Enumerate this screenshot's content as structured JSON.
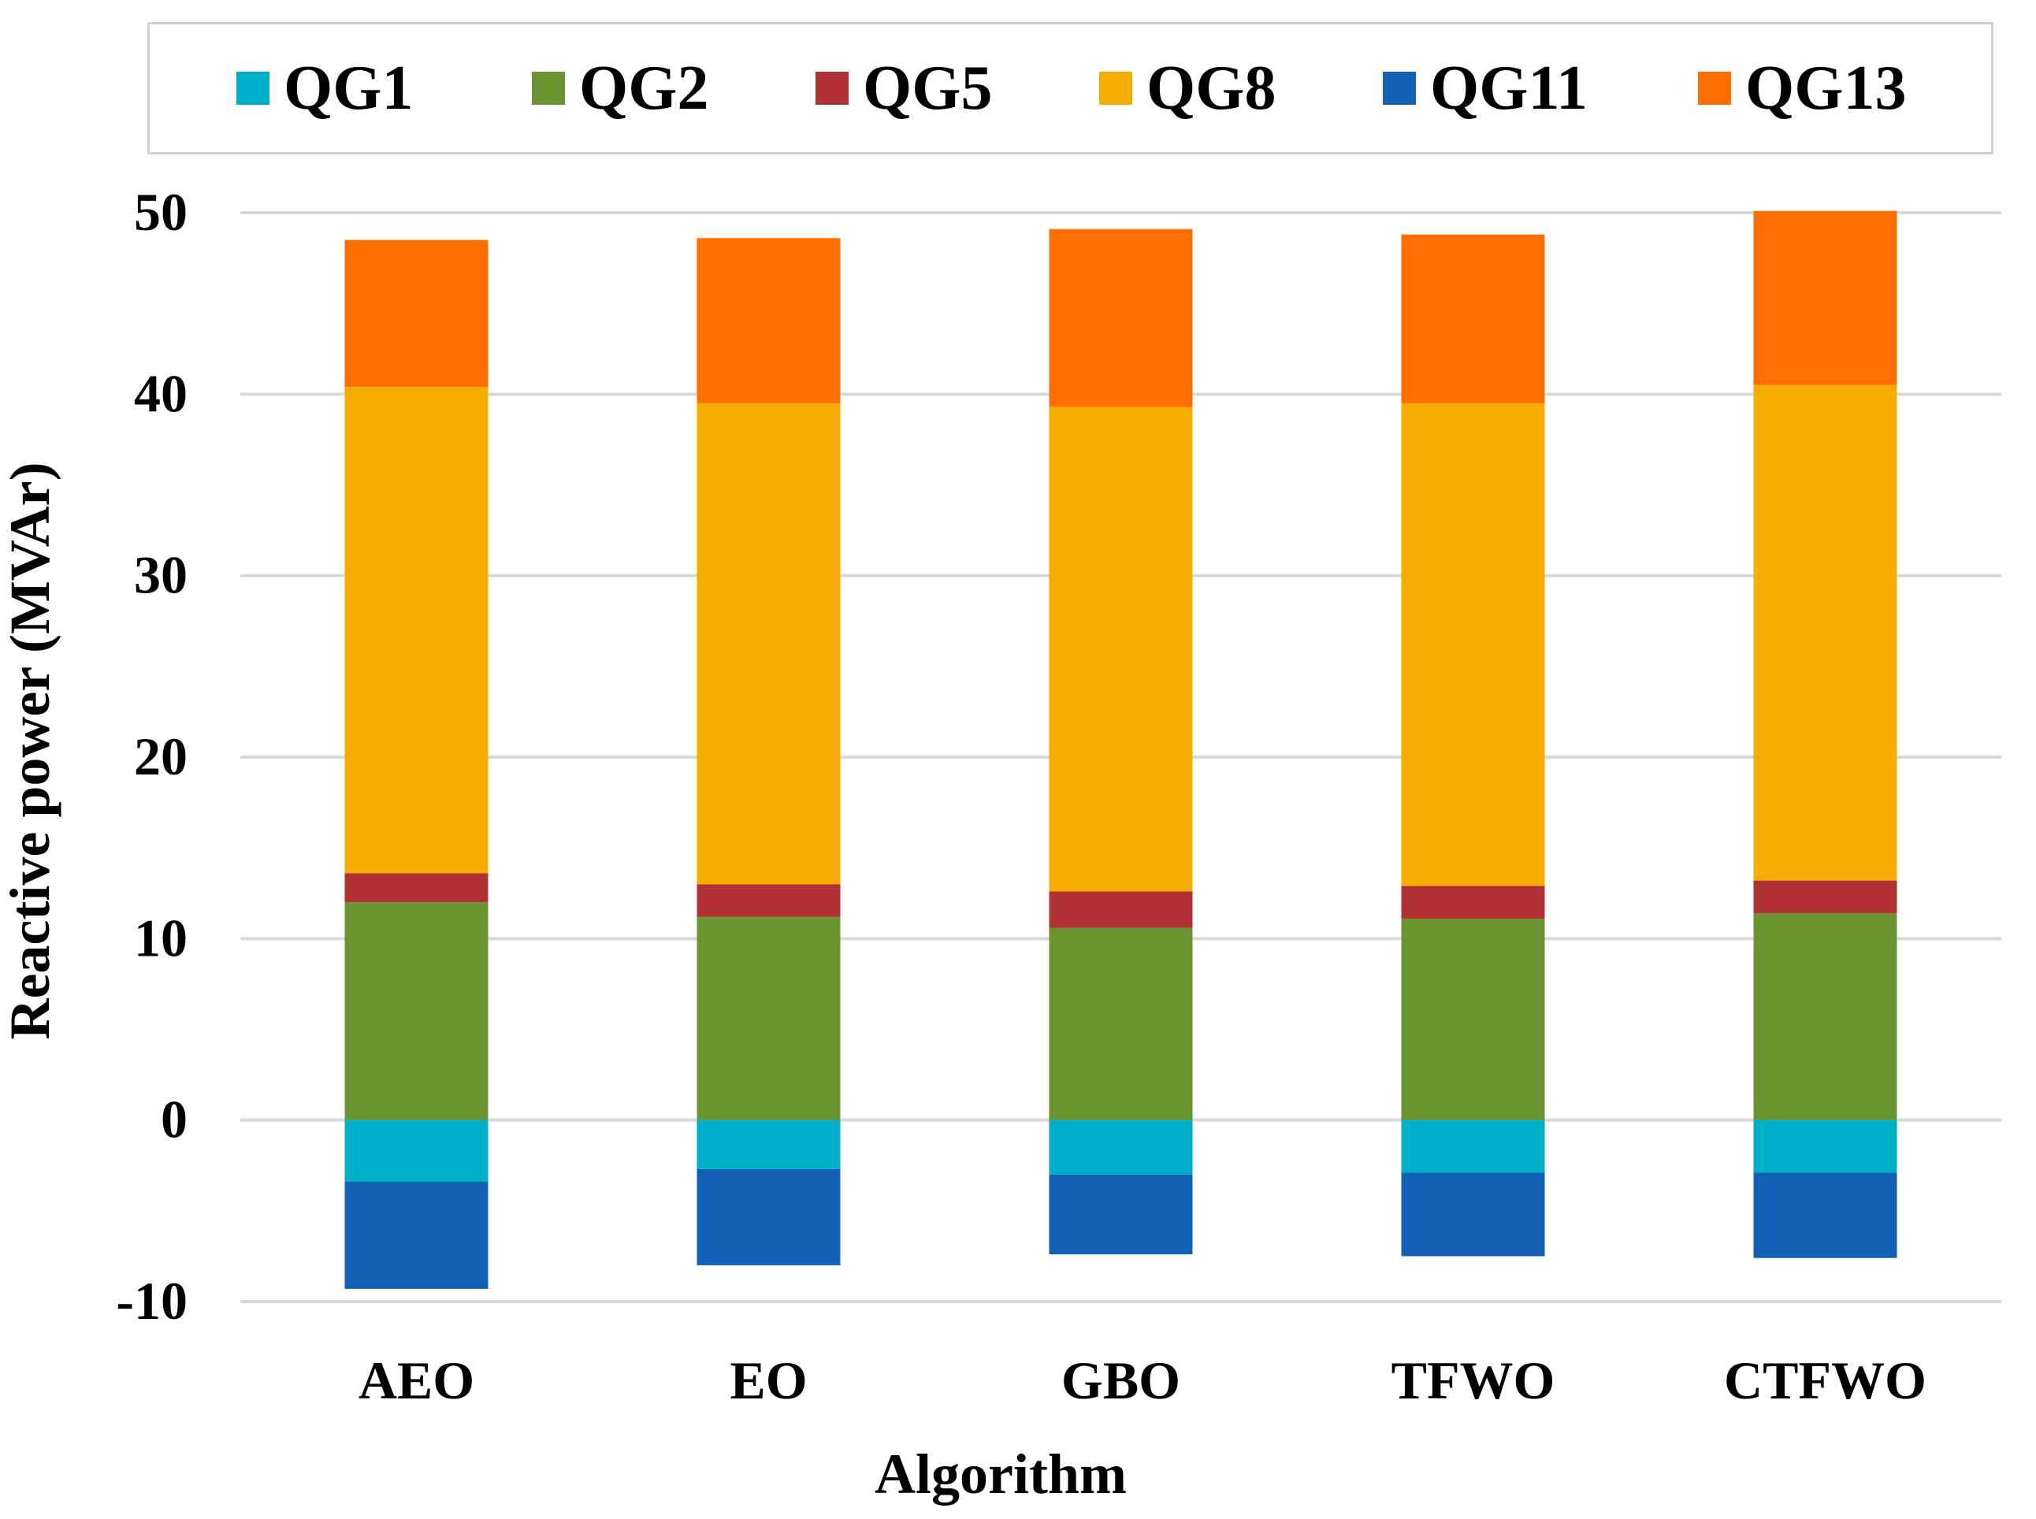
{
  "chart_data": {
    "type": "bar",
    "stacked": true,
    "title": "",
    "xlabel": "Algorithm",
    "ylabel": "Reactive power (MVAr)",
    "ylim": [
      -10,
      50
    ],
    "yticks": [
      -10,
      0,
      10,
      20,
      30,
      40,
      50
    ],
    "grid": true,
    "legend": "top",
    "categories": [
      "AEO",
      "EO",
      "GBO",
      "TFWO",
      "CTFWO"
    ],
    "series": [
      {
        "name": "QG1",
        "color": "#00AEC7",
        "values": [
          -3.4,
          -2.7,
          -3.0,
          -2.9,
          -2.9
        ]
      },
      {
        "name": "QG2",
        "color": "#6A9432",
        "values": [
          12.0,
          11.2,
          10.6,
          11.1,
          11.4
        ]
      },
      {
        "name": "QG5",
        "color": "#B03234",
        "values": [
          1.6,
          1.8,
          2.0,
          1.8,
          1.8
        ]
      },
      {
        "name": "QG8",
        "color": "#F4AD00",
        "values": [
          26.8,
          26.5,
          26.7,
          26.6,
          27.3
        ]
      },
      {
        "name": "QG11",
        "color": "#1261B5",
        "values": [
          -5.9,
          -5.3,
          -4.4,
          -4.6,
          -4.7
        ]
      },
      {
        "name": "QG13",
        "color": "#FF6E00",
        "values": [
          8.1,
          9.1,
          9.8,
          9.3,
          9.6
        ]
      }
    ]
  }
}
